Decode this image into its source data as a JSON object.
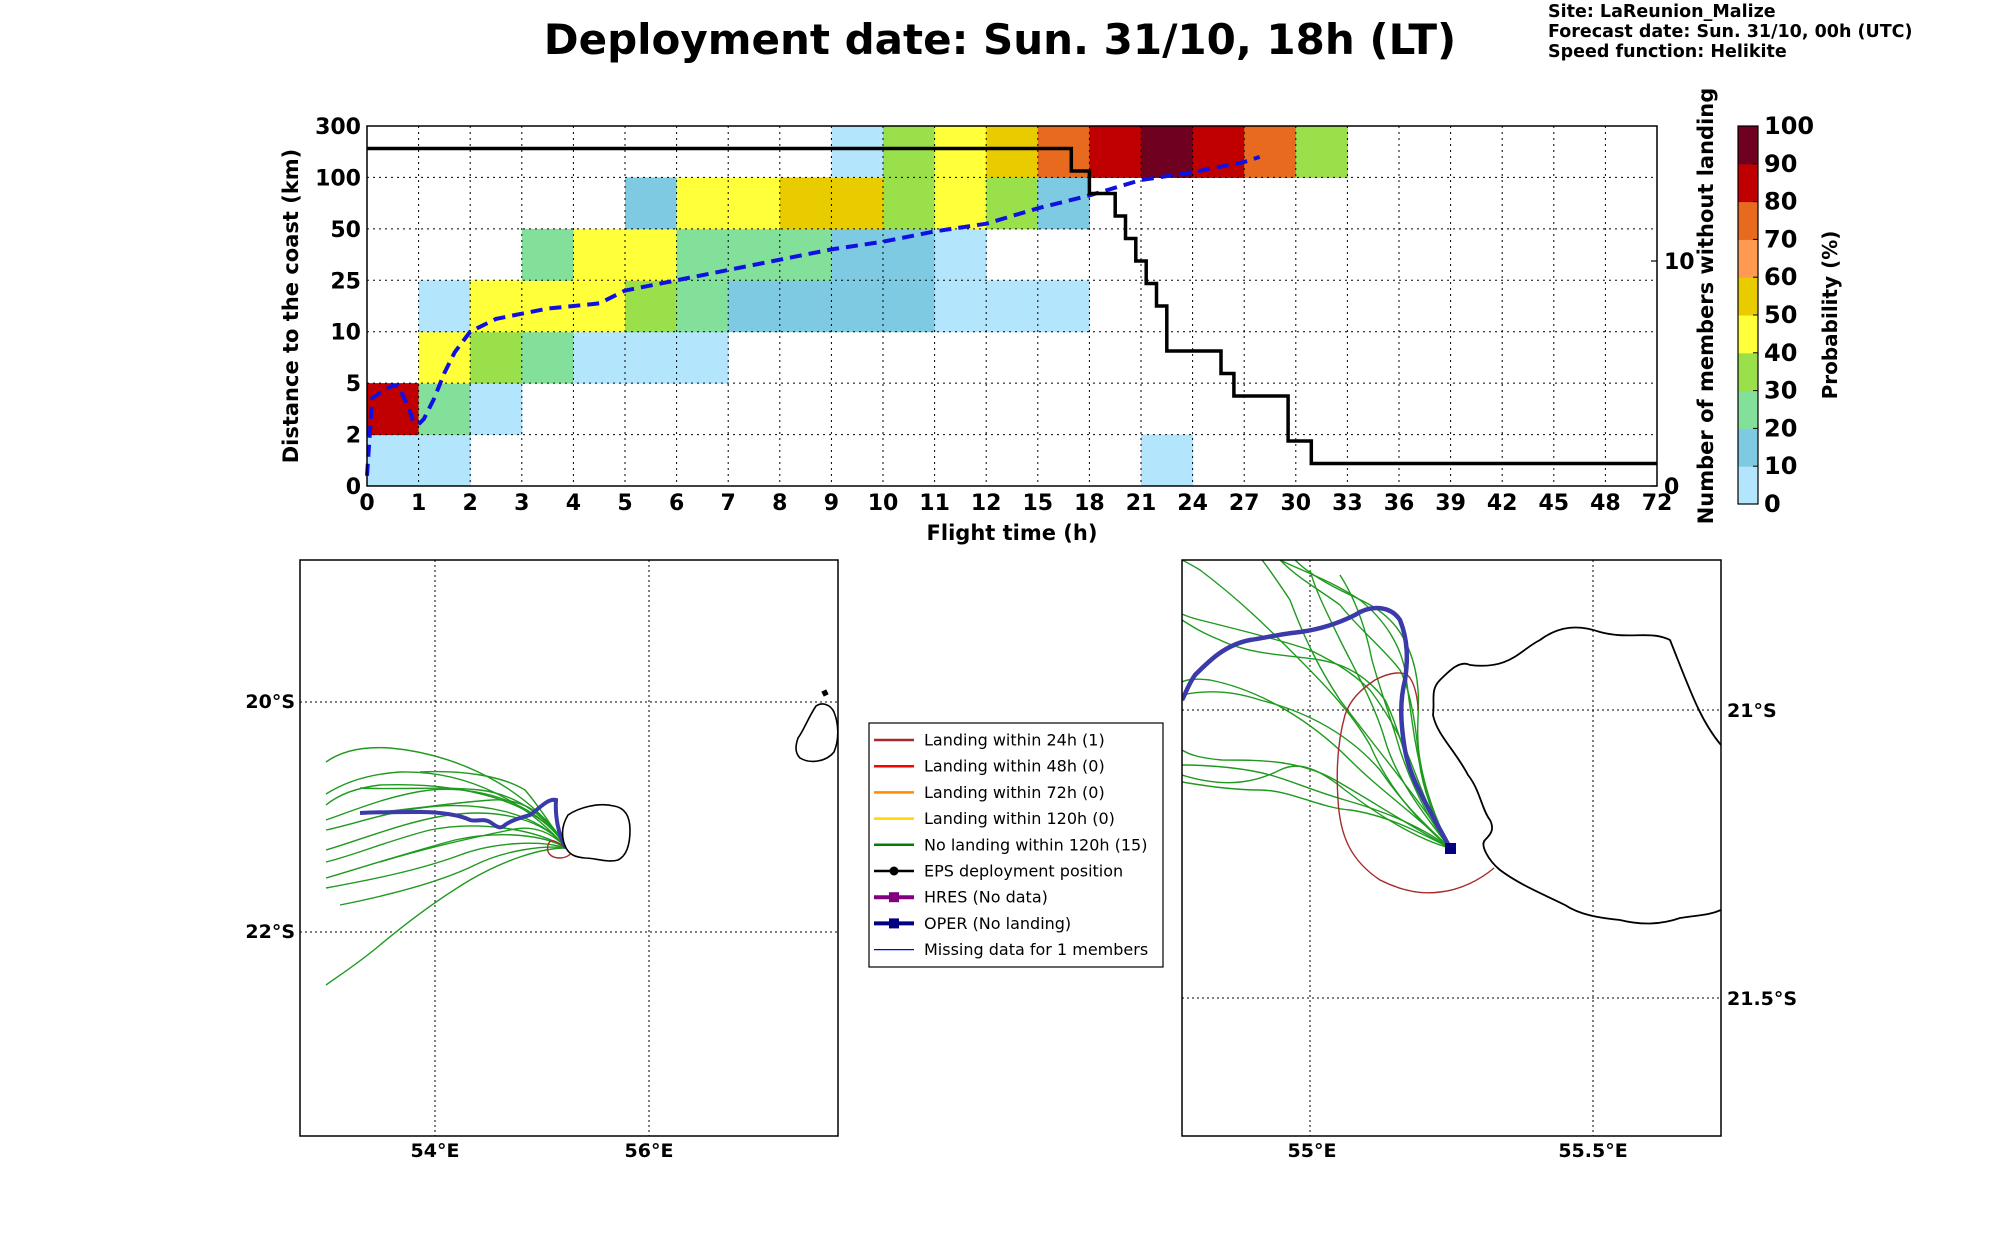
{
  "title": "Deployment date: Sun. 31/10, 18h (LT)",
  "info": {
    "site": "Site: LaReunion_Malize",
    "forecast": "Forecast date: Sun. 31/10, 00h (UTC)",
    "speed": "Speed function: Helikite"
  },
  "chart_data": [
    {
      "type": "heatmap",
      "xlabel": "Flight time (h)",
      "ylabel": "Distance to the coast (km)",
      "y2label": "Number of members without landing",
      "colorbar_label": "Probability (%)",
      "x_ticks": [
        "0",
        "1",
        "2",
        "3",
        "4",
        "5",
        "6",
        "7",
        "8",
        "9",
        "10",
        "11",
        "12",
        "15",
        "18",
        "21",
        "24",
        "27",
        "30",
        "33",
        "36",
        "39",
        "42",
        "45",
        "48",
        "72"
      ],
      "y_ticks": [
        "0",
        "2",
        "5",
        "10",
        "25",
        "50",
        "100",
        "300"
      ],
      "y2_ticks": [
        "0",
        "10"
      ],
      "y2_range": [
        0,
        16
      ],
      "grid": true,
      "colorbar": {
        "bounds": [
          0,
          10,
          20,
          30,
          40,
          50,
          60,
          70,
          80,
          90,
          100
        ],
        "ticks": [
          "0",
          "10",
          "20",
          "30",
          "40",
          "50",
          "60",
          "70",
          "80",
          "90",
          "100"
        ],
        "colors": [
          "#b3e5fc",
          "#7ecae3",
          "#82e09a",
          "#9ae04a",
          "#ffff3a",
          "#e8cc00",
          "#ff9a50",
          "#e86a1e",
          "#c00000",
          "#700020"
        ]
      },
      "cells": [
        {
          "x": 0,
          "y": 0,
          "p": 5
        },
        {
          "x": 1,
          "y": 0,
          "p": 5
        },
        {
          "x": 15,
          "y": 0,
          "p": 5
        },
        {
          "x": 0,
          "y": 1,
          "p": 85
        },
        {
          "x": 1,
          "y": 1,
          "p": 20
        },
        {
          "x": 2,
          "y": 1,
          "p": 5
        },
        {
          "x": 1,
          "y": 2,
          "p": 45
        },
        {
          "x": 2,
          "y": 2,
          "p": 35
        },
        {
          "x": 3,
          "y": 2,
          "p": 20
        },
        {
          "x": 4,
          "y": 2,
          "p": 5
        },
        {
          "x": 5,
          "y": 2,
          "p": 5
        },
        {
          "x": 6,
          "y": 2,
          "p": 5
        },
        {
          "x": 1,
          "y": 3,
          "p": 5
        },
        {
          "x": 2,
          "y": 3,
          "p": 45
        },
        {
          "x": 3,
          "y": 3,
          "p": 45
        },
        {
          "x": 4,
          "y": 3,
          "p": 45
        },
        {
          "x": 5,
          "y": 3,
          "p": 35
        },
        {
          "x": 6,
          "y": 3,
          "p": 25
        },
        {
          "x": 7,
          "y": 3,
          "p": 15
        },
        {
          "x": 8,
          "y": 3,
          "p": 15
        },
        {
          "x": 9,
          "y": 3,
          "p": 15
        },
        {
          "x": 10,
          "y": 3,
          "p": 15
        },
        {
          "x": 11,
          "y": 3,
          "p": 5
        },
        {
          "x": 12,
          "y": 3,
          "p": 5
        },
        {
          "x": 13,
          "y": 3,
          "p": 5
        },
        {
          "x": 3,
          "y": 4,
          "p": 25
        },
        {
          "x": 4,
          "y": 4,
          "p": 45
        },
        {
          "x": 5,
          "y": 4,
          "p": 45
        },
        {
          "x": 6,
          "y": 4,
          "p": 25
        },
        {
          "x": 7,
          "y": 4,
          "p": 25
        },
        {
          "x": 8,
          "y": 4,
          "p": 25
        },
        {
          "x": 9,
          "y": 4,
          "p": 15
        },
        {
          "x": 10,
          "y": 4,
          "p": 15
        },
        {
          "x": 11,
          "y": 4,
          "p": 5
        },
        {
          "x": 5,
          "y": 5,
          "p": 15
        },
        {
          "x": 6,
          "y": 5,
          "p": 45
        },
        {
          "x": 7,
          "y": 5,
          "p": 45
        },
        {
          "x": 8,
          "y": 5,
          "p": 55
        },
        {
          "x": 9,
          "y": 5,
          "p": 55
        },
        {
          "x": 10,
          "y": 5,
          "p": 35
        },
        {
          "x": 11,
          "y": 5,
          "p": 45
        },
        {
          "x": 12,
          "y": 5,
          "p": 35
        },
        {
          "x": 13,
          "y": 5,
          "p": 15
        },
        {
          "x": 9,
          "y": 6,
          "p": 5
        },
        {
          "x": 10,
          "y": 6,
          "p": 35
        },
        {
          "x": 11,
          "y": 6,
          "p": 45
        },
        {
          "x": 12,
          "y": 6,
          "p": 55
        },
        {
          "x": 13,
          "y": 6,
          "p": 75
        },
        {
          "x": 14,
          "y": 6,
          "p": 85
        },
        {
          "x": 15,
          "y": 6,
          "p": 95
        },
        {
          "x": 16,
          "y": 6,
          "p": 85
        },
        {
          "x": 17,
          "y": 6,
          "p": 75
        },
        {
          "x": 18,
          "y": 6,
          "p": 35
        }
      ],
      "mean_distance_line": {
        "style": "blue dashed",
        "points": [
          [
            0,
            0.2
          ],
          [
            0.1,
            1.7
          ],
          [
            0.3,
            1.85
          ],
          [
            0.5,
            1.95
          ],
          [
            0.6,
            1.95
          ],
          [
            0.8,
            1.55
          ],
          [
            0.9,
            1.25
          ],
          [
            1.0,
            1.2
          ],
          [
            1.1,
            1.3
          ],
          [
            1.3,
            1.7
          ],
          [
            1.5,
            2.2
          ],
          [
            1.7,
            2.6
          ],
          [
            2.0,
            3.0
          ],
          [
            2.5,
            3.25
          ],
          [
            3.0,
            3.35
          ],
          [
            3.5,
            3.45
          ],
          [
            4.0,
            3.5
          ],
          [
            4.5,
            3.55
          ],
          [
            5.0,
            3.8
          ],
          [
            6.0,
            4.0
          ],
          [
            7.0,
            4.2
          ],
          [
            8.0,
            4.4
          ],
          [
            9.0,
            4.6
          ],
          [
            10.0,
            4.75
          ],
          [
            11.0,
            4.95
          ],
          [
            12.0,
            5.1
          ],
          [
            13.0,
            5.4
          ],
          [
            14.0,
            5.65
          ],
          [
            15.0,
            5.95
          ],
          [
            16.0,
            6.1
          ],
          [
            17.0,
            6.3
          ],
          [
            17.3,
            6.4
          ]
        ]
      },
      "members_without_landing_line": {
        "style": "black solid",
        "points": [
          [
            0,
            15
          ],
          [
            13.65,
            15
          ],
          [
            13.65,
            14
          ],
          [
            14,
            14
          ],
          [
            14,
            13
          ],
          [
            14.5,
            13
          ],
          [
            14.5,
            12
          ],
          [
            14.7,
            12
          ],
          [
            14.7,
            11
          ],
          [
            14.9,
            11
          ],
          [
            14.9,
            10
          ],
          [
            15.1,
            10
          ],
          [
            15.1,
            9
          ],
          [
            15.3,
            9
          ],
          [
            15.3,
            8
          ],
          [
            15.5,
            8
          ],
          [
            15.5,
            6
          ],
          [
            16.55,
            6
          ],
          [
            16.55,
            5
          ],
          [
            16.8,
            5
          ],
          [
            16.8,
            4
          ],
          [
            17.85,
            4
          ],
          [
            17.85,
            2
          ],
          [
            18.3,
            2
          ],
          [
            18.3,
            1
          ],
          [
            25,
            1
          ]
        ]
      }
    },
    {
      "type": "map",
      "lat_ticks": [
        "20°S",
        "22°S"
      ],
      "lon_ticks": [
        "54°E",
        "56°E"
      ],
      "grid": true
    },
    {
      "type": "map",
      "lat_ticks": [
        "21°S",
        "21.5°S"
      ],
      "lon_ticks": [
        "55°E",
        "55.5°E"
      ],
      "grid": true
    }
  ],
  "legend": [
    {
      "label": "Landing within 24h (1)",
      "color": "#a52a2a",
      "marker": "line"
    },
    {
      "label": "Landing within 48h (0)",
      "color": "#ff0000",
      "marker": "line"
    },
    {
      "label": "Landing within 72h (0)",
      "color": "#ff8c00",
      "marker": "line"
    },
    {
      "label": "Landing within 120h (0)",
      "color": "#ffd700",
      "marker": "line"
    },
    {
      "label": "No landing within 120h (15)",
      "color": "#008000",
      "marker": "line"
    },
    {
      "label": "EPS deployment position",
      "color": "#000000",
      "marker": "dot"
    },
    {
      "label": "HRES (No data)",
      "color": "#800080",
      "marker": "square-thick"
    },
    {
      "label": "OPER (No landing)",
      "color": "#000080",
      "marker": "square-thick"
    },
    {
      "label": "Missing data for 1 members",
      "color": "#0000ff",
      "marker": "thin"
    }
  ]
}
